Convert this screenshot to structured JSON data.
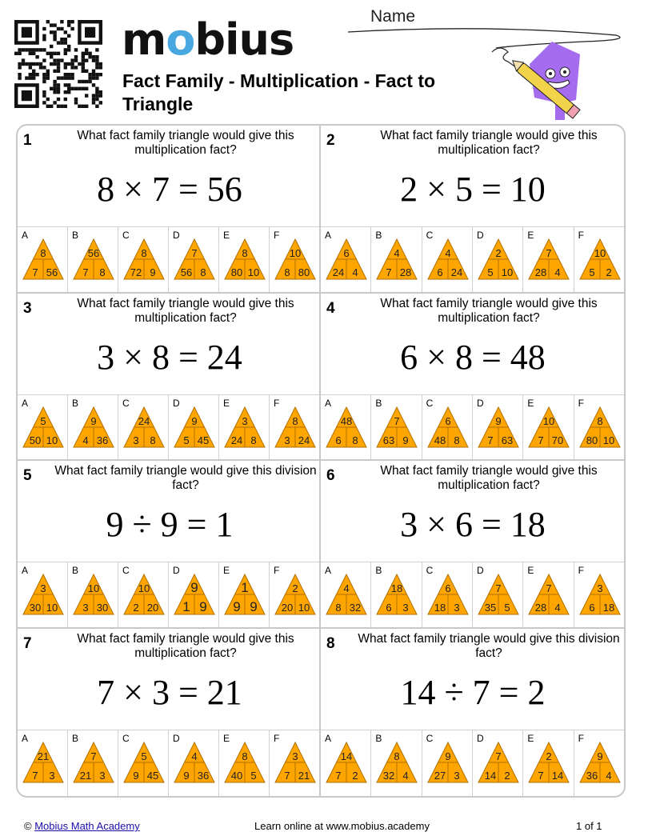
{
  "header": {
    "logo_text": "mobius",
    "title": "Fact Family - Multiplication - Fact to Triangle",
    "name_label": "Name"
  },
  "colors": {
    "triangle_fill": "#FFA500",
    "triangle_stroke": "#B07000",
    "border": "#c8c8c8",
    "logo_accent": "#4aa8e0",
    "link": "#1a0dab"
  },
  "problems": [
    {
      "number": "1",
      "question": "What fact family triangle would give this multiplication fact?",
      "equation": "8 × 7 = 56",
      "choices": [
        {
          "label": "A",
          "top": "8",
          "left": "7",
          "right": "56"
        },
        {
          "label": "B",
          "top": "56",
          "left": "7",
          "right": "8"
        },
        {
          "label": "C",
          "top": "8",
          "left": "72",
          "right": "9"
        },
        {
          "label": "D",
          "top": "7",
          "left": "56",
          "right": "8"
        },
        {
          "label": "E",
          "top": "8",
          "left": "80",
          "right": "10"
        },
        {
          "label": "F",
          "top": "10",
          "left": "8",
          "right": "80"
        }
      ]
    },
    {
      "number": "2",
      "question": "What fact family triangle would give this multiplication fact?",
      "equation": "2 × 5 = 10",
      "choices": [
        {
          "label": "A",
          "top": "6",
          "left": "24",
          "right": "4"
        },
        {
          "label": "B",
          "top": "4",
          "left": "7",
          "right": "28"
        },
        {
          "label": "C",
          "top": "4",
          "left": "6",
          "right": "24"
        },
        {
          "label": "D",
          "top": "2",
          "left": "5",
          "right": "10"
        },
        {
          "label": "E",
          "top": "7",
          "left": "28",
          "right": "4"
        },
        {
          "label": "F",
          "top": "10",
          "left": "5",
          "right": "2"
        }
      ]
    },
    {
      "number": "3",
      "question": "What fact family triangle would give this multiplication fact?",
      "equation": "3 × 8 = 24",
      "choices": [
        {
          "label": "A",
          "top": "5",
          "left": "50",
          "right": "10"
        },
        {
          "label": "B",
          "top": "9",
          "left": "4",
          "right": "36"
        },
        {
          "label": "C",
          "top": "24",
          "left": "3",
          "right": "8"
        },
        {
          "label": "D",
          "top": "9",
          "left": "5",
          "right": "45"
        },
        {
          "label": "E",
          "top": "3",
          "left": "24",
          "right": "8"
        },
        {
          "label": "F",
          "top": "8",
          "left": "3",
          "right": "24"
        }
      ]
    },
    {
      "number": "4",
      "question": "What fact family triangle would give this multiplication fact?",
      "equation": "6 × 8 = 48",
      "choices": [
        {
          "label": "A",
          "top": "48",
          "left": "6",
          "right": "8"
        },
        {
          "label": "B",
          "top": "7",
          "left": "63",
          "right": "9"
        },
        {
          "label": "C",
          "top": "6",
          "left": "48",
          "right": "8"
        },
        {
          "label": "D",
          "top": "9",
          "left": "7",
          "right": "63"
        },
        {
          "label": "E",
          "top": "10",
          "left": "7",
          "right": "70"
        },
        {
          "label": "F",
          "top": "8",
          "left": "80",
          "right": "10"
        }
      ]
    },
    {
      "number": "5",
      "question": "What fact family triangle would give this division fact?",
      "equation": "9 ÷ 9 = 1",
      "choices": [
        {
          "label": "A",
          "top": "3",
          "left": "30",
          "right": "10"
        },
        {
          "label": "B",
          "top": "10",
          "left": "3",
          "right": "30"
        },
        {
          "label": "C",
          "top": "10",
          "left": "2",
          "right": "20"
        },
        {
          "label": "D",
          "top": "9",
          "left": "1",
          "right": "9"
        },
        {
          "label": "E",
          "top": "1",
          "left": "9",
          "right": "9"
        },
        {
          "label": "F",
          "top": "2",
          "left": "20",
          "right": "10"
        }
      ]
    },
    {
      "number": "6",
      "question": "What fact family triangle would give this multiplication fact?",
      "equation": "3 × 6 = 18",
      "choices": [
        {
          "label": "A",
          "top": "4",
          "left": "8",
          "right": "32"
        },
        {
          "label": "B",
          "top": "18",
          "left": "6",
          "right": "3"
        },
        {
          "label": "C",
          "top": "6",
          "left": "18",
          "right": "3"
        },
        {
          "label": "D",
          "top": "7",
          "left": "35",
          "right": "5"
        },
        {
          "label": "E",
          "top": "7",
          "left": "28",
          "right": "4"
        },
        {
          "label": "F",
          "top": "3",
          "left": "6",
          "right": "18"
        }
      ]
    },
    {
      "number": "7",
      "question": "What fact family triangle would give this multiplication fact?",
      "equation": "7 × 3 = 21",
      "choices": [
        {
          "label": "A",
          "top": "21",
          "left": "7",
          "right": "3"
        },
        {
          "label": "B",
          "top": "7",
          "left": "21",
          "right": "3"
        },
        {
          "label": "C",
          "top": "5",
          "left": "9",
          "right": "45"
        },
        {
          "label": "D",
          "top": "4",
          "left": "9",
          "right": "36"
        },
        {
          "label": "E",
          "top": "8",
          "left": "40",
          "right": "5"
        },
        {
          "label": "F",
          "top": "3",
          "left": "7",
          "right": "21"
        }
      ]
    },
    {
      "number": "8",
      "question": "What fact family triangle would give this division fact?",
      "equation": "14 ÷ 7 = 2",
      "choices": [
        {
          "label": "A",
          "top": "14",
          "left": "7",
          "right": "2"
        },
        {
          "label": "B",
          "top": "8",
          "left": "32",
          "right": "4"
        },
        {
          "label": "C",
          "top": "9",
          "left": "27",
          "right": "3"
        },
        {
          "label": "D",
          "top": "7",
          "left": "14",
          "right": "2"
        },
        {
          "label": "E",
          "top": "2",
          "left": "7",
          "right": "14"
        },
        {
          "label": "F",
          "top": "9",
          "left": "36",
          "right": "4"
        }
      ]
    }
  ],
  "footer": {
    "copyright_symbol": "©",
    "copyright_link": "Mobius Math Academy",
    "center_text": "Learn online at www.mobius.academy",
    "page_indicator": "1 of 1"
  }
}
